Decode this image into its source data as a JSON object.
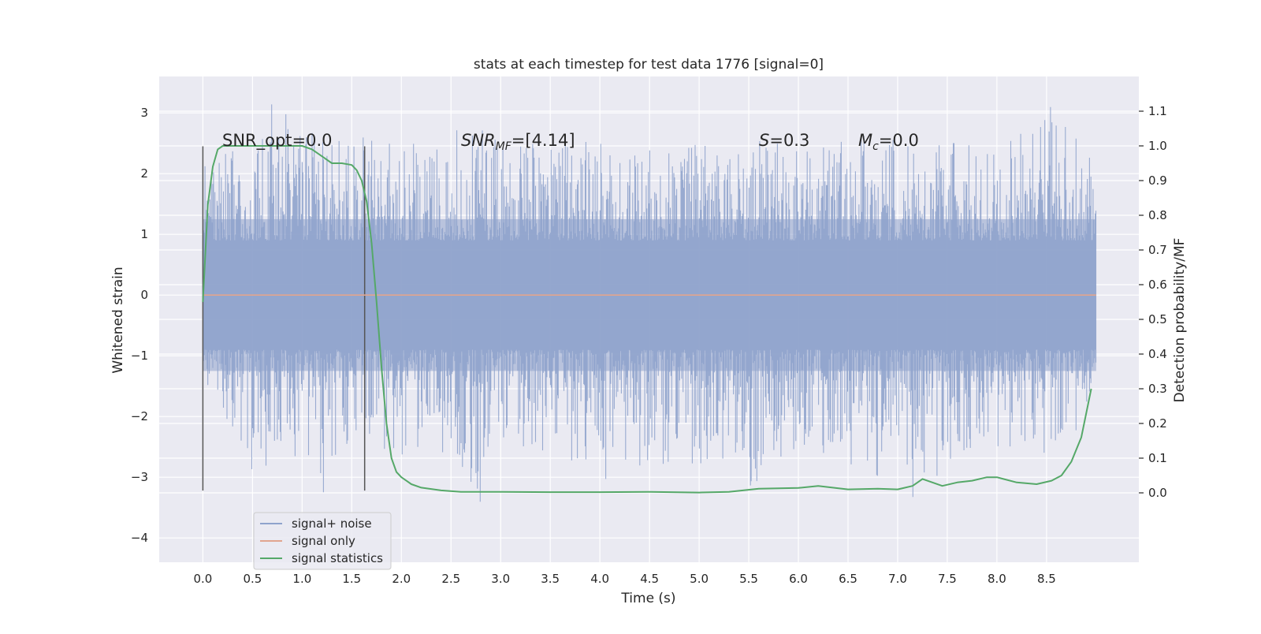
{
  "chart_data": {
    "type": "line",
    "title": "stats at each timestep for test data 1776 [signal=0]",
    "xlabel": "Time (s)",
    "ylabel": "Whitened strain",
    "ylabel_right": "Detection probability/MF",
    "xlim": [
      -0.44,
      9.43
    ],
    "ylim": [
      -4.4,
      3.6
    ],
    "ylim_right": [
      -0.2,
      1.2
    ],
    "x_ticks": [
      0.0,
      0.5,
      1.0,
      1.5,
      2.0,
      2.5,
      3.0,
      3.5,
      4.0,
      4.5,
      5.0,
      5.5,
      6.0,
      6.5,
      7.0,
      7.5,
      8.0,
      8.5
    ],
    "x_tick_labels": [
      "0.0",
      "0.5",
      "1.0",
      "1.5",
      "2.0",
      "2.5",
      "3.0",
      "3.5",
      "4.0",
      "4.5",
      "5.0",
      "5.5",
      "6.0",
      "6.5",
      "7.0",
      "7.5",
      "8.0",
      "8.5"
    ],
    "y_ticks": [
      -4,
      -3,
      -2,
      -1,
      0,
      1,
      2,
      3
    ],
    "y_tick_labels": [
      "−4",
      "−3",
      "−2",
      "−1",
      "0",
      "1",
      "2",
      "3"
    ],
    "y_right_ticks": [
      0.0,
      0.1,
      0.2,
      0.3,
      0.4,
      0.5,
      0.6,
      0.7,
      0.8,
      0.9,
      1.0,
      1.1
    ],
    "y_right_tick_labels": [
      "0.0",
      "0.1",
      "0.2",
      "0.3",
      "0.4",
      "0.5",
      "0.6",
      "0.7",
      "0.8",
      "0.9",
      "1.0",
      "1.1"
    ],
    "grid": true,
    "legend_position": "lower-left",
    "series": [
      {
        "name": "signal+ noise",
        "color": "#8fa3cc",
        "axis": "left",
        "x_range": [
          0.0,
          9.0
        ],
        "envelope_x": [
          0.0,
          0.5,
          0.7,
          1.0,
          1.1,
          1.25,
          1.5,
          2.0,
          2.5,
          2.8,
          3.0,
          3.5,
          4.0,
          4.05,
          4.5,
          5.0,
          5.4,
          5.5,
          6.0,
          6.5,
          7.0,
          7.15,
          7.5,
          8.0,
          8.4,
          8.5,
          9.0
        ],
        "envelope_max": [
          2.1,
          2.6,
          3.2,
          2.8,
          3.1,
          2.5,
          2.7,
          2.5,
          2.7,
          2.8,
          2.6,
          2.6,
          2.5,
          2.7,
          2.4,
          2.5,
          2.6,
          2.6,
          2.5,
          2.6,
          2.7,
          2.5,
          2.6,
          2.5,
          2.8,
          3.2,
          2.3
        ],
        "envelope_min": [
          -1.4,
          -2.9,
          -2.8,
          -2.9,
          -3.1,
          -3.6,
          -2.3,
          -2.7,
          -2.6,
          -3.5,
          -2.4,
          -2.7,
          -2.8,
          -3.3,
          -2.8,
          -2.8,
          -2.7,
          -3.3,
          -2.5,
          -3.0,
          -3.0,
          -3.4,
          -2.8,
          -2.6,
          -2.6,
          -2.8,
          -1.9
        ]
      },
      {
        "name": "signal only",
        "color": "#e1a58f",
        "axis": "left",
        "x": [
          0.0,
          9.0
        ],
        "values": [
          0.0,
          0.0
        ]
      },
      {
        "name": "signal statistics",
        "color": "#55a868",
        "axis": "right",
        "x": [
          0.0,
          0.05,
          0.1,
          0.15,
          0.2,
          0.3,
          0.5,
          1.0,
          1.1,
          1.2,
          1.3,
          1.4,
          1.5,
          1.55,
          1.6,
          1.65,
          1.7,
          1.75,
          1.8,
          1.85,
          1.9,
          1.95,
          2.0,
          2.05,
          2.1,
          2.2,
          2.4,
          2.6,
          3.0,
          3.5,
          4.0,
          4.5,
          5.0,
          5.3,
          5.6,
          6.0,
          6.2,
          6.5,
          6.8,
          7.0,
          7.15,
          7.25,
          7.35,
          7.45,
          7.6,
          7.75,
          7.9,
          8.0,
          8.2,
          8.4,
          8.55,
          8.65,
          8.75,
          8.85,
          8.95
        ],
        "values": [
          0.55,
          0.83,
          0.94,
          0.99,
          1.0,
          1.0,
          1.0,
          1.0,
          0.99,
          0.97,
          0.95,
          0.95,
          0.945,
          0.93,
          0.9,
          0.84,
          0.72,
          0.55,
          0.36,
          0.2,
          0.1,
          0.06,
          0.045,
          0.035,
          0.025,
          0.015,
          0.007,
          0.003,
          0.003,
          0.002,
          0.002,
          0.003,
          0.001,
          0.003,
          0.012,
          0.014,
          0.02,
          0.01,
          0.012,
          0.01,
          0.02,
          0.04,
          0.03,
          0.02,
          0.03,
          0.035,
          0.045,
          0.045,
          0.03,
          0.025,
          0.035,
          0.05,
          0.09,
          0.16,
          0.3
        ]
      }
    ],
    "vertical_lines": [
      0.0,
      1.63
    ],
    "annotations": {
      "snr_opt": "SNR_opt=0.0",
      "snr_mf_symbol": "SNR",
      "snr_mf_sub": "MF",
      "snr_mf_value": "=[4.14]",
      "s_symbol": "S",
      "s_value": "=0.3",
      "mc_symbol": "M",
      "mc_sub": "c",
      "mc_value": "=0.0"
    }
  }
}
